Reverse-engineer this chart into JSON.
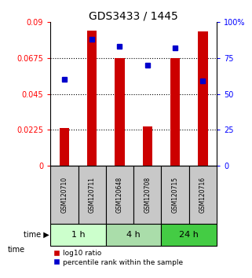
{
  "title": "GDS3433 / 1445",
  "samples": [
    "GSM120710",
    "GSM120711",
    "GSM120648",
    "GSM120708",
    "GSM120715",
    "GSM120716"
  ],
  "bar_heights": [
    0.0235,
    0.0845,
    0.0675,
    0.0245,
    0.0675,
    0.084
  ],
  "blue_markers_pct": [
    60,
    88,
    83,
    70,
    82,
    59
  ],
  "ylim_left": [
    0,
    0.09
  ],
  "ylim_right": [
    0,
    100
  ],
  "yticks_left": [
    0,
    0.0225,
    0.045,
    0.0675,
    0.09
  ],
  "ytick_labels_left": [
    "0",
    "0.0225",
    "0.045",
    "0.0675",
    "0.09"
  ],
  "yticks_right": [
    0,
    25,
    50,
    75,
    100
  ],
  "ytick_labels_right": [
    "0",
    "25",
    "50",
    "75",
    "100%"
  ],
  "groups": [
    {
      "label": "1 h",
      "indices": [
        0,
        1
      ]
    },
    {
      "label": "4 h",
      "indices": [
        2,
        3
      ]
    },
    {
      "label": "24 h",
      "indices": [
        4,
        5
      ]
    }
  ],
  "time_colors": [
    "#ccffcc",
    "#aaddaa",
    "#44cc44"
  ],
  "bar_color": "#cc0000",
  "marker_color": "#0000cc",
  "bg_labels": "#c8c8c8",
  "label_fontsize": 5.5,
  "title_fontsize": 10,
  "tick_fontsize": 7,
  "time_fontsize": 8
}
